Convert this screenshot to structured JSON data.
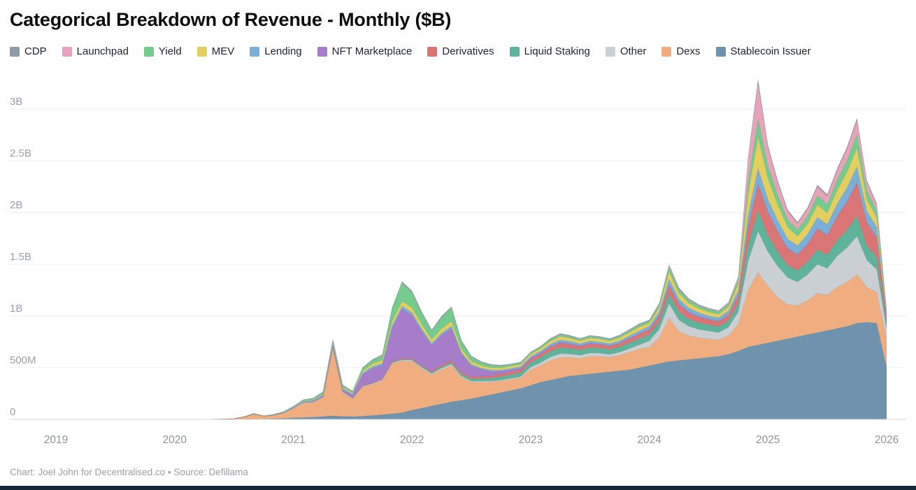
{
  "title": "Categorical Breakdown of Revenue - Monthly ($B)",
  "footer": "Chart: Joel John for Decentralised.co • Source: Defillama",
  "chart_data": {
    "type": "area",
    "stacked": true,
    "unit": "USD millions per month",
    "title": "Categorical Breakdown of Revenue - Monthly ($B)",
    "xlabel": "",
    "ylabel": "",
    "grid": "horizontal",
    "legend_position": "top",
    "ylim_M": [
      0,
      3400
    ],
    "y_ticks_M": [
      0,
      500,
      1000,
      1500,
      2000,
      2500,
      3000
    ],
    "y_tick_labels": [
      "0",
      "500M",
      "1B",
      "1.5B",
      "2B",
      "2.5B",
      "3B"
    ],
    "x_tick_labels": [
      "2019",
      "2020",
      "2021",
      "2022",
      "2023",
      "2024",
      "2025",
      "2026"
    ],
    "legend_order": [
      "CDP",
      "Launchpad",
      "Yield",
      "MEV",
      "Lending",
      "NFT Marketplace",
      "Derivatives",
      "Liquid Staking",
      "Other",
      "Dexs",
      "Stablecoin Issuer"
    ],
    "x": [
      "2019-01",
      "2019-02",
      "2019-03",
      "2019-04",
      "2019-05",
      "2019-06",
      "2019-07",
      "2019-08",
      "2019-09",
      "2019-10",
      "2019-11",
      "2019-12",
      "2020-01",
      "2020-02",
      "2020-03",
      "2020-04",
      "2020-05",
      "2020-06",
      "2020-07",
      "2020-08",
      "2020-09",
      "2020-10",
      "2020-11",
      "2020-12",
      "2021-01",
      "2021-02",
      "2021-03",
      "2021-04",
      "2021-05",
      "2021-06",
      "2021-07",
      "2021-08",
      "2021-09",
      "2021-10",
      "2021-11",
      "2021-12",
      "2022-01",
      "2022-02",
      "2022-03",
      "2022-04",
      "2022-05",
      "2022-06",
      "2022-07",
      "2022-08",
      "2022-09",
      "2022-10",
      "2022-11",
      "2022-12",
      "2023-01",
      "2023-02",
      "2023-03",
      "2023-04",
      "2023-05",
      "2023-06",
      "2023-07",
      "2023-08",
      "2023-09",
      "2023-10",
      "2023-11",
      "2023-12",
      "2024-01",
      "2024-02",
      "2024-03",
      "2024-04",
      "2024-05",
      "2024-06",
      "2024-07",
      "2024-08",
      "2024-09",
      "2024-10",
      "2024-11",
      "2024-12",
      "2025-01",
      "2025-02",
      "2025-03",
      "2025-04",
      "2025-05",
      "2025-06",
      "2025-07",
      "2025-08",
      "2025-09",
      "2025-10",
      "2025-11",
      "2025-12",
      "2026-01"
    ],
    "series": [
      {
        "name": "Stablecoin Issuer",
        "color": "#6F93AC",
        "values": [
          0,
          0,
          0,
          0,
          0,
          0,
          0,
          1,
          1,
          1,
          1,
          1,
          1,
          1,
          1,
          1,
          1,
          2,
          2,
          3,
          4,
          5,
          7,
          10,
          15,
          18,
          22,
          28,
          35,
          30,
          28,
          32,
          38,
          45,
          55,
          65,
          90,
          110,
          130,
          150,
          170,
          185,
          200,
          220,
          240,
          260,
          280,
          300,
          330,
          360,
          380,
          400,
          420,
          430,
          440,
          450,
          460,
          470,
          480,
          500,
          520,
          540,
          560,
          570,
          580,
          590,
          600,
          610,
          630,
          660,
          700,
          720,
          740,
          760,
          780,
          800,
          820,
          840,
          860,
          880,
          900,
          930,
          940,
          930,
          500
        ]
      },
      {
        "name": "Dexs",
        "color": "#EFAD80",
        "values": [
          0,
          0,
          0,
          0,
          0,
          0,
          0,
          0,
          0,
          0,
          0,
          0,
          0,
          0,
          0,
          0,
          1,
          2,
          5,
          20,
          48,
          25,
          32,
          50,
          90,
          140,
          140,
          180,
          650,
          230,
          170,
          280,
          300,
          330,
          480,
          500,
          470,
          380,
          300,
          330,
          350,
          220,
          160,
          140,
          120,
          110,
          105,
          100,
          150,
          160,
          190,
          200,
          180,
          160,
          170,
          160,
          140,
          150,
          170,
          180,
          180,
          250,
          420,
          280,
          230,
          200,
          180,
          160,
          180,
          260,
          550,
          700,
          550,
          420,
          330,
          300,
          330,
          380,
          340,
          400,
          430,
          470,
          340,
          300,
          280
        ]
      },
      {
        "name": "Other",
        "color": "#C9CFD3",
        "values": [
          0,
          0,
          0,
          0,
          0,
          0,
          0,
          0,
          0,
          0,
          0,
          0,
          0,
          0,
          0,
          0,
          0,
          0,
          0,
          1,
          1,
          1,
          2,
          2,
          4,
          5,
          5,
          6,
          8,
          6,
          5,
          6,
          7,
          8,
          10,
          11,
          12,
          12,
          12,
          14,
          14,
          12,
          10,
          10,
          10,
          10,
          11,
          12,
          25,
          28,
          32,
          35,
          32,
          30,
          32,
          30,
          28,
          30,
          35,
          40,
          60,
          80,
          140,
          110,
          90,
          80,
          75,
          70,
          80,
          120,
          280,
          400,
          330,
          300,
          260,
          230,
          250,
          280,
          260,
          300,
          330,
          370,
          260,
          220,
          90
        ]
      },
      {
        "name": "Liquid Staking",
        "color": "#5FB39B",
        "values": [
          0,
          0,
          0,
          0,
          0,
          0,
          0,
          0,
          0,
          0,
          0,
          0,
          0,
          0,
          0,
          0,
          0,
          0,
          0,
          0,
          0,
          0,
          0,
          0,
          0,
          0,
          1,
          1,
          2,
          2,
          2,
          3,
          3,
          4,
          5,
          6,
          8,
          10,
          12,
          15,
          18,
          20,
          22,
          25,
          28,
          32,
          36,
          40,
          45,
          50,
          55,
          58,
          55,
          50,
          52,
          50,
          48,
          50,
          55,
          60,
          60,
          70,
          90,
          80,
          70,
          65,
          60,
          58,
          62,
          80,
          150,
          200,
          160,
          140,
          120,
          110,
          120,
          140,
          130,
          150,
          170,
          195,
          140,
          120,
          50
        ]
      },
      {
        "name": "Derivatives",
        "color": "#D97575",
        "values": [
          0,
          0,
          0,
          0,
          0,
          0,
          0,
          0,
          0,
          0,
          0,
          0,
          0,
          0,
          0,
          0,
          0,
          0,
          0,
          0,
          0,
          0,
          1,
          1,
          1,
          2,
          2,
          3,
          4,
          3,
          3,
          4,
          5,
          5,
          6,
          7,
          8,
          10,
          12,
          15,
          18,
          18,
          18,
          20,
          22,
          24,
          26,
          27,
          28,
          32,
          38,
          42,
          38,
          34,
          36,
          34,
          32,
          35,
          40,
          45,
          45,
          55,
          80,
          70,
          60,
          55,
          50,
          48,
          55,
          75,
          180,
          250,
          220,
          190,
          160,
          150,
          170,
          200,
          190,
          230,
          270,
          320,
          220,
          190,
          60
        ]
      },
      {
        "name": "NFT Marketplace",
        "color": "#A77CC8",
        "values": [
          0,
          0,
          0,
          0,
          0,
          0,
          0,
          0,
          0,
          0,
          0,
          0,
          0,
          0,
          0,
          0,
          0,
          0,
          0,
          0,
          0,
          0,
          0,
          0,
          0,
          0,
          4,
          8,
          15,
          18,
          25,
          110,
          140,
          130,
          330,
          480,
          420,
          330,
          250,
          290,
          310,
          180,
          110,
          70,
          45,
          30,
          22,
          18,
          15,
          12,
          10,
          10,
          8,
          8,
          7,
          6,
          6,
          5,
          5,
          5,
          6,
          8,
          12,
          10,
          8,
          6,
          5,
          5,
          5,
          6,
          8,
          10,
          8,
          7,
          6,
          5,
          5,
          5,
          5,
          5,
          6,
          6,
          5,
          4,
          2
        ]
      },
      {
        "name": "Lending",
        "color": "#7BAFD7",
        "values": [
          0,
          0,
          0,
          0,
          0,
          0,
          0,
          0,
          0,
          0,
          0,
          0,
          0,
          0,
          0,
          0,
          0,
          0,
          0,
          1,
          2,
          2,
          3,
          5,
          8,
          10,
          12,
          15,
          22,
          15,
          12,
          15,
          18,
          20,
          25,
          26,
          26,
          23,
          20,
          22,
          22,
          16,
          13,
          12,
          12,
          12,
          13,
          14,
          16,
          18,
          22,
          24,
          22,
          20,
          21,
          20,
          19,
          21,
          24,
          27,
          30,
          38,
          55,
          45,
          40,
          36,
          33,
          32,
          36,
          48,
          110,
          150,
          120,
          105,
          90,
          85,
          95,
          110,
          100,
          120,
          135,
          155,
          110,
          95,
          35
        ]
      },
      {
        "name": "MEV",
        "color": "#E2CF60",
        "values": [
          0,
          0,
          0,
          0,
          0,
          0,
          0,
          0,
          0,
          0,
          0,
          0,
          0,
          0,
          0,
          0,
          0,
          0,
          0,
          0,
          1,
          1,
          1,
          2,
          2,
          4,
          6,
          8,
          12,
          10,
          10,
          18,
          24,
          30,
          38,
          44,
          48,
          42,
          36,
          42,
          46,
          34,
          28,
          24,
          22,
          20,
          20,
          21,
          22,
          25,
          30,
          33,
          30,
          27,
          29,
          27,
          25,
          28,
          32,
          36,
          30,
          40,
          70,
          55,
          45,
          40,
          36,
          34,
          40,
          60,
          200,
          300,
          200,
          150,
          110,
          90,
          100,
          120,
          110,
          130,
          150,
          175,
          110,
          90,
          20
        ]
      },
      {
        "name": "Yield",
        "color": "#74CB8D",
        "values": [
          0,
          0,
          0,
          0,
          0,
          0,
          0,
          0,
          0,
          0,
          0,
          0,
          0,
          0,
          0,
          0,
          0,
          0,
          0,
          1,
          2,
          1,
          2,
          3,
          4,
          8,
          10,
          14,
          20,
          14,
          12,
          25,
          35,
          45,
          120,
          180,
          150,
          110,
          85,
          110,
          130,
          70,
          45,
          32,
          26,
          20,
          17,
          15,
          14,
          15,
          17,
          19,
          17,
          16,
          17,
          16,
          15,
          17,
          19,
          21,
          20,
          28,
          45,
          35,
          30,
          26,
          24,
          23,
          26,
          38,
          120,
          180,
          120,
          95,
          75,
          65,
          75,
          90,
          85,
          100,
          115,
          135,
          90,
          70,
          10
        ]
      },
      {
        "name": "Launchpad",
        "color": "#E7A4B9",
        "values": [
          0,
          0,
          0,
          0,
          0,
          0,
          0,
          0,
          0,
          0,
          0,
          0,
          0,
          0,
          0,
          0,
          0,
          0,
          0,
          0,
          0,
          0,
          0,
          0,
          1,
          1,
          1,
          1,
          2,
          2,
          2,
          2,
          2,
          2,
          3,
          3,
          3,
          3,
          2,
          2,
          2,
          2,
          2,
          2,
          2,
          2,
          2,
          2,
          2,
          2,
          3,
          3,
          3,
          3,
          3,
          3,
          3,
          3,
          4,
          4,
          4,
          6,
          12,
          8,
          6,
          5,
          5,
          5,
          8,
          25,
          220,
          350,
          180,
          120,
          80,
          60,
          70,
          85,
          80,
          95,
          110,
          135,
          80,
          55,
          8
        ]
      },
      {
        "name": "CDP",
        "color": "#8D9BA8",
        "values": [
          0,
          0,
          0,
          0,
          0,
          0,
          0,
          0,
          0,
          0,
          0,
          0,
          0,
          0,
          0,
          0,
          0,
          0,
          0,
          0,
          1,
          1,
          1,
          2,
          2,
          3,
          4,
          5,
          6,
          5,
          5,
          6,
          7,
          8,
          10,
          11,
          10,
          9,
          8,
          9,
          9,
          7,
          6,
          6,
          5,
          5,
          5,
          6,
          6,
          6,
          7,
          7,
          7,
          6,
          6,
          6,
          6,
          7,
          7,
          8,
          7,
          8,
          11,
          10,
          9,
          8,
          8,
          8,
          8,
          10,
          20,
          25,
          20,
          17,
          14,
          12,
          13,
          15,
          14,
          16,
          18,
          20,
          15,
          12,
          3
        ]
      }
    ]
  }
}
